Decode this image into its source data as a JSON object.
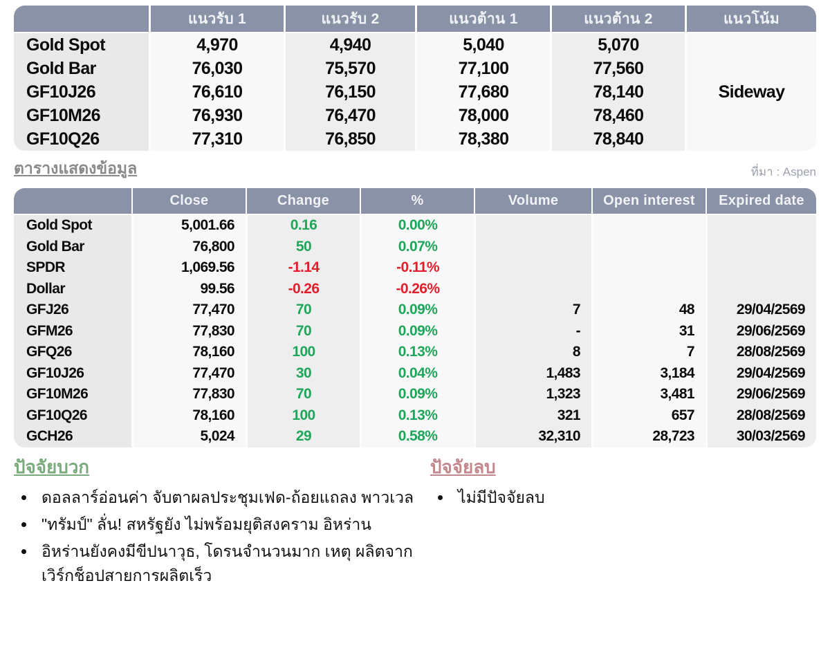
{
  "colors": {
    "header_bg": "#8a92a8",
    "positive_value": "#1ea65a",
    "negative_value": "#e31e2c",
    "positive_heading": "#79ab7c",
    "negative_heading": "#c3888d"
  },
  "support_table": {
    "headers": [
      "",
      "แนวรับ 1",
      "แนวรับ 2",
      "แนวต้าน 1",
      "แนวต้าน 2",
      "แนวโน้ม"
    ],
    "trend": "Sideway",
    "rows": [
      {
        "label": "Gold Spot",
        "s1": "4,970",
        "s2": "4,940",
        "r1": "5,040",
        "r2": "5,070"
      },
      {
        "label": "Gold Bar",
        "s1": "76,030",
        "s2": "75,570",
        "r1": "77,100",
        "r2": "77,560"
      },
      {
        "label": "GF10J26",
        "s1": "76,610",
        "s2": "76,150",
        "r1": "77,680",
        "r2": "78,140"
      },
      {
        "label": "GF10M26",
        "s1": "76,930",
        "s2": "76,470",
        "r1": "78,000",
        "r2": "78,460"
      },
      {
        "label": "GF10Q26",
        "s1": "77,310",
        "s2": "76,850",
        "r1": "78,380",
        "r2": "78,840"
      }
    ]
  },
  "mid": {
    "title": "ตารางแสดงข้อมูล",
    "source": "ที่มา : Aspen"
  },
  "data_table": {
    "headers": [
      "",
      "Close",
      "Change",
      "%",
      "Volume",
      "Open interest",
      "Expired date"
    ],
    "rows": [
      {
        "label": "Gold Spot",
        "close": "5,001.66",
        "change": "0.16",
        "pct": "0.00%",
        "volume": "",
        "oi": "",
        "expiry": "",
        "dir": "up"
      },
      {
        "label": "Gold Bar",
        "close": "76,800",
        "change": "50",
        "pct": "0.07%",
        "volume": "",
        "oi": "",
        "expiry": "",
        "dir": "up"
      },
      {
        "label": "SPDR",
        "close": "1,069.56",
        "change": "-1.14",
        "pct": "-0.11%",
        "volume": "",
        "oi": "",
        "expiry": "",
        "dir": "down"
      },
      {
        "label": "Dollar",
        "close": "99.56",
        "change": "-0.26",
        "pct": "-0.26%",
        "volume": "",
        "oi": "",
        "expiry": "",
        "dir": "down"
      },
      {
        "label": "GFJ26",
        "close": "77,470",
        "change": "70",
        "pct": "0.09%",
        "volume": "7",
        "oi": "48",
        "expiry": "29/04/2569",
        "dir": "up"
      },
      {
        "label": "GFM26",
        "close": "77,830",
        "change": "70",
        "pct": "0.09%",
        "volume": "-",
        "oi": "31",
        "expiry": "29/06/2569",
        "dir": "up"
      },
      {
        "label": "GFQ26",
        "close": "78,160",
        "change": "100",
        "pct": "0.13%",
        "volume": "8",
        "oi": "7",
        "expiry": "28/08/2569",
        "dir": "up"
      },
      {
        "label": "GF10J26",
        "close": "77,470",
        "change": "30",
        "pct": "0.04%",
        "volume": "1,483",
        "oi": "3,184",
        "expiry": "29/04/2569",
        "dir": "up"
      },
      {
        "label": "GF10M26",
        "close": "77,830",
        "change": "70",
        "pct": "0.09%",
        "volume": "1,323",
        "oi": "3,481",
        "expiry": "29/06/2569",
        "dir": "up"
      },
      {
        "label": "GF10Q26",
        "close": "78,160",
        "change": "100",
        "pct": "0.13%",
        "volume": "321",
        "oi": "657",
        "expiry": "28/08/2569",
        "dir": "up"
      },
      {
        "label": "GCH26",
        "close": "5,024",
        "change": "29",
        "pct": "0.58%",
        "volume": "32,310",
        "oi": "28,723",
        "expiry": "30/03/2569",
        "dir": "up"
      }
    ]
  },
  "factors": {
    "positive": {
      "title": "ปัจจัยบวก",
      "items": [
        "ดอลลาร์อ่อนค่า จับตาผลประชุมเฟด-ถ้อยแถลง พาวเวล",
        "\"ทรัมป์\" ลั่น! สหรัฐยัง ไม่พร้อมยุติสงคราม อิหร่าน",
        "อิหร่านยังคงมีขีปนาวุธ, โดรนจำนวนมาก เหตุ ผลิตจากเวิร์กช็อปสายการผลิตเร็ว"
      ]
    },
    "negative": {
      "title": "ปัจจัยลบ",
      "items": [
        "ไม่มีปัจจัยลบ"
      ]
    }
  }
}
